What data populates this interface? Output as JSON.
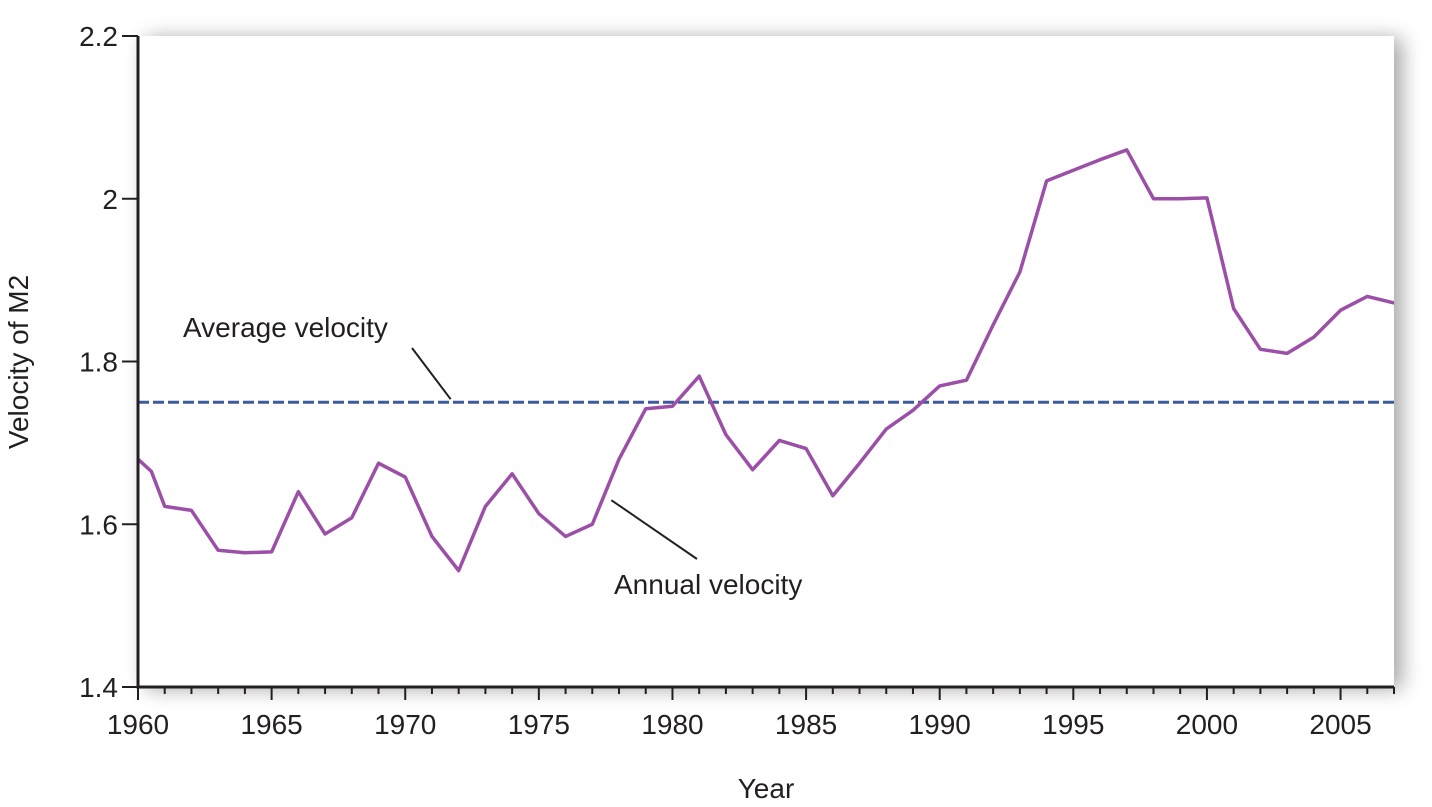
{
  "chart_data": {
    "type": "line",
    "xlabel": "Year",
    "ylabel": "Velocity of M2",
    "xlim": [
      1960,
      2007
    ],
    "ylim": [
      1.4,
      2.2
    ],
    "x_ticks": [
      1960,
      1965,
      1970,
      1975,
      1980,
      1985,
      1990,
      1995,
      2000,
      2005
    ],
    "x_tick_labels": [
      "1960",
      "1965",
      "1970",
      "1975",
      "1980",
      "1985",
      "1990",
      "1995",
      "2000",
      "2005"
    ],
    "y_ticks": [
      1.4,
      1.6,
      1.8,
      2.0,
      2.2
    ],
    "y_tick_labels": [
      "1.4",
      "1.6",
      "1.8",
      "2",
      "2.2"
    ],
    "grid": false,
    "series": [
      {
        "name": "Annual velocity",
        "color": "#9b4fa7",
        "style": "solid",
        "x": [
          1960,
          1960.5,
          1961,
          1962,
          1963,
          1964,
          1965,
          1966,
          1967,
          1968,
          1969,
          1970,
          1971,
          1972,
          1973,
          1974,
          1975,
          1976,
          1977,
          1978,
          1979,
          1980,
          1981,
          1982,
          1983,
          1984,
          1985,
          1986,
          1987,
          1988,
          1989,
          1990,
          1991,
          1992,
          1993,
          1994,
          1995,
          1996,
          1997,
          1998,
          1999,
          2000,
          2001,
          2002,
          2003,
          2004,
          2005,
          2006,
          2007
        ],
        "values": [
          1.68,
          1.665,
          1.622,
          1.617,
          1.568,
          1.565,
          1.566,
          1.64,
          1.588,
          1.608,
          1.675,
          1.658,
          1.585,
          1.543,
          1.622,
          1.662,
          1.613,
          1.585,
          1.6,
          1.68,
          1.742,
          1.745,
          1.782,
          1.71,
          1.667,
          1.703,
          1.693,
          1.635,
          1.675,
          1.717,
          1.74,
          1.77,
          1.777,
          1.845,
          1.91,
          2.022,
          2.035,
          2.048,
          2.06,
          2.0,
          2.0,
          2.001,
          1.865,
          1.815,
          1.81,
          1.83,
          1.863,
          1.88,
          1.872
        ]
      },
      {
        "name": "Average velocity",
        "color": "#3d5a9e",
        "style": "dashed",
        "x": [
          1960,
          2007
        ],
        "values": [
          1.75,
          1.75
        ]
      }
    ],
    "annotations": [
      {
        "text": "Average velocity",
        "target_series": "Average velocity",
        "target_x": 1971.7,
        "target_y": 1.75
      },
      {
        "text": "Annual velocity",
        "target_series": "Annual velocity",
        "target_x": 1977.6,
        "target_y": 1.637
      }
    ]
  }
}
